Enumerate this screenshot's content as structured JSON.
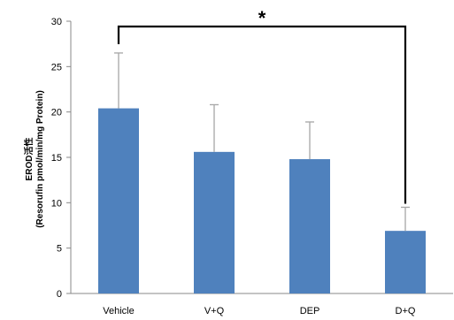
{
  "chart_data": {
    "type": "bar",
    "categories": [
      "Vehicle",
      "V+Q",
      "DEP",
      "D+Q"
    ],
    "values": [
      20.4,
      15.6,
      14.8,
      6.9
    ],
    "errors": [
      6.1,
      5.2,
      4.1,
      2.6
    ],
    "ylabel_line1": "EROD活性",
    "ylabel_line2": "(Resorufin pmol/min/mg Protein)",
    "ylim": [
      0,
      30
    ],
    "yticks": [
      "0",
      "5",
      "10",
      "15",
      "20",
      "25",
      "30"
    ],
    "grid": false,
    "bar_color": "#4F81BD",
    "error_color": "#A6A6A6",
    "significance": {
      "label": "*",
      "from_category": "Vehicle",
      "to_category": "D+Q",
      "color": "#000000"
    }
  }
}
